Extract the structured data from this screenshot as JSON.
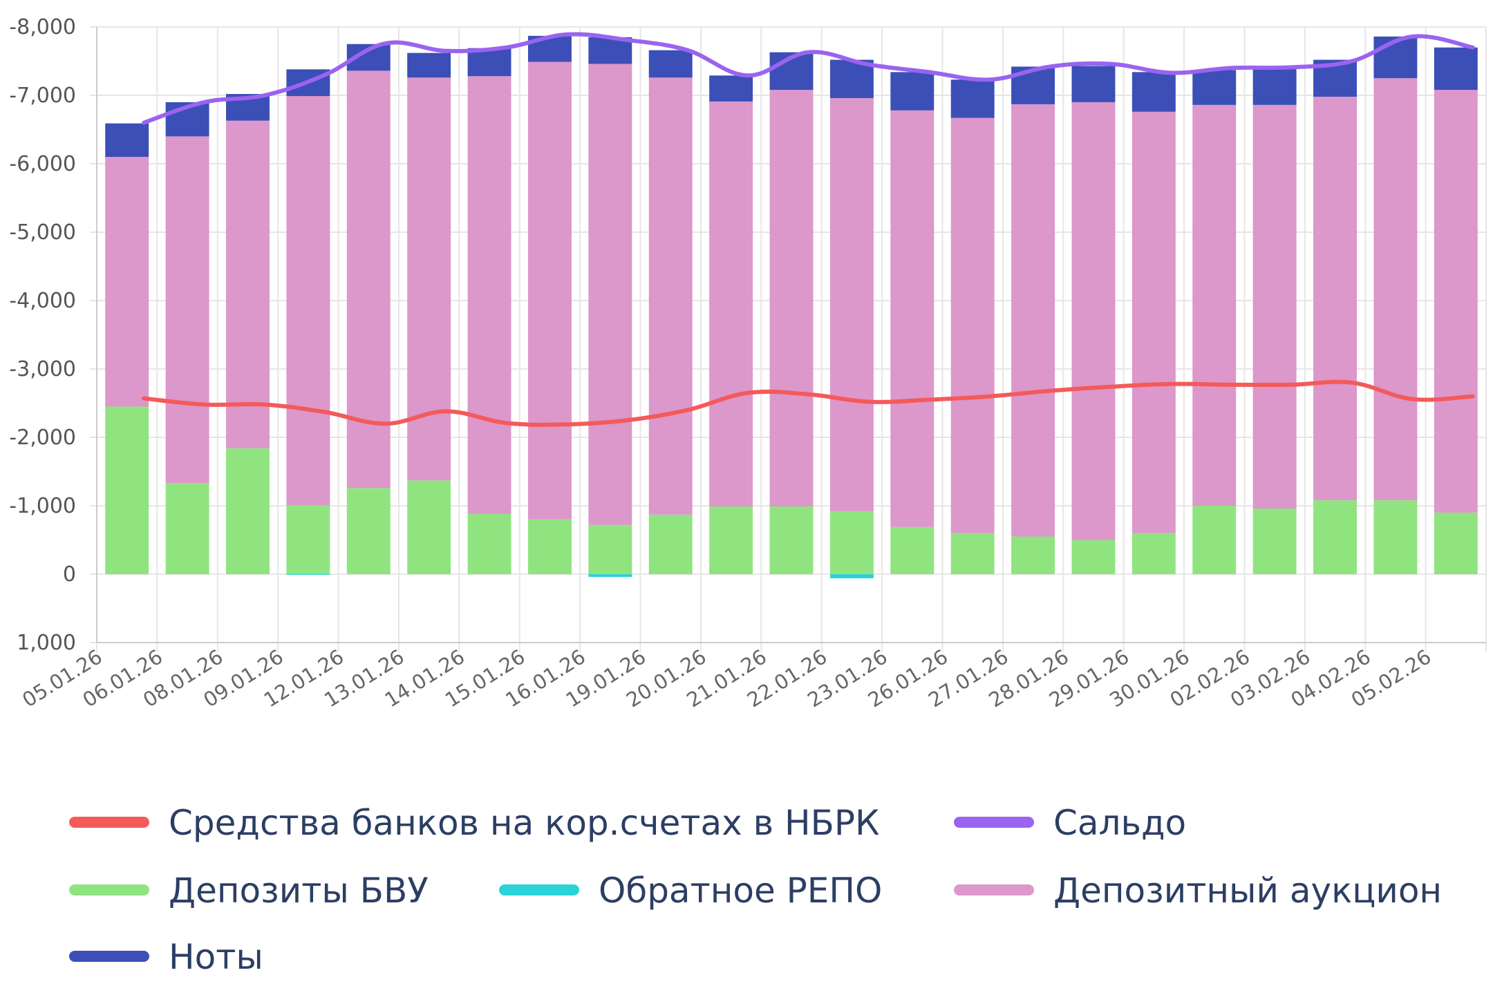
{
  "chart_data": {
    "type": "bar",
    "stacked": true,
    "axis_reversed": true,
    "ylim": [
      -8000,
      1000
    ],
    "yticks": [
      -8000,
      -7000,
      -6000,
      -5000,
      -4000,
      -3000,
      -2000,
      -1000,
      0,
      1000
    ],
    "ytick_labels": [
      "-8,000",
      "-7,000",
      "-6,000",
      "-5,000",
      "-4,000",
      "-3,000",
      "-2,000",
      "-1,000",
      "0",
      "1,000"
    ],
    "grid": true,
    "legend_position": "bottom",
    "categories": [
      "05.01.26",
      "06.01.26",
      "08.01.26",
      "09.01.26",
      "12.01.26",
      "13.01.26",
      "14.01.26",
      "15.01.26",
      "16.01.26",
      "19.01.26",
      "20.01.26",
      "21.01.26",
      "22.01.26",
      "23.01.26",
      "26.01.26",
      "27.01.26",
      "28.01.26",
      "29.01.26",
      "30.01.26",
      "02.02.26",
      "03.02.26",
      "04.02.26",
      "05.02.26"
    ],
    "series": [
      {
        "name": "Депозиты БВУ",
        "type": "bar",
        "color": "#90e480",
        "values": [
          -2450,
          -1330,
          -1840,
          -1010,
          -1260,
          -1370,
          -880,
          -800,
          -720,
          -870,
          -990,
          -990,
          -920,
          -690,
          -600,
          -550,
          -500,
          -600,
          -1000,
          -960,
          -1080,
          -1080,
          -900
        ]
      },
      {
        "name": "Обратное РЕПО",
        "type": "bar",
        "color": "#2ad3d8",
        "values": [
          0,
          0,
          0,
          10,
          0,
          0,
          0,
          0,
          40,
          0,
          0,
          0,
          60,
          0,
          0,
          0,
          0,
          0,
          0,
          0,
          0,
          0,
          0
        ]
      },
      {
        "name": "Депозитный аукцион",
        "type": "bar",
        "color": "#dc97cb",
        "values": [
          -3650,
          -5070,
          -4790,
          -5980,
          -6100,
          -5890,
          -6400,
          -6690,
          -6740,
          -6390,
          -5920,
          -6090,
          -6040,
          -6090,
          -6070,
          -6320,
          -6400,
          -6160,
          -5860,
          -5900,
          -5900,
          -6170,
          -6180
        ]
      },
      {
        "name": "Ноты",
        "type": "bar",
        "color": "#3b4fb7",
        "values": [
          -490,
          -500,
          -390,
          -390,
          -390,
          -360,
          -410,
          -380,
          -390,
          -400,
          -380,
          -550,
          -560,
          -560,
          -560,
          -550,
          -530,
          -580,
          -510,
          -540,
          -540,
          -610,
          -620
        ]
      },
      {
        "name": "Средства банков на кор.счетах в НБРК",
        "type": "line",
        "color": "#f45a5a",
        "values": [
          -2570,
          -2480,
          -2480,
          -2370,
          -2200,
          -2380,
          -2210,
          -2190,
          -2250,
          -2400,
          -2650,
          -2630,
          -2520,
          -2550,
          -2600,
          -2680,
          -2740,
          -2780,
          -2770,
          -2770,
          -2800,
          -2560,
          -2600
        ]
      },
      {
        "name": "Сальдо",
        "type": "line",
        "color": "#9a63f0",
        "values": [
          -6600,
          -6900,
          -7000,
          -7300,
          -7760,
          -7650,
          -7700,
          -7890,
          -7810,
          -7660,
          -7290,
          -7630,
          -7450,
          -7340,
          -7230,
          -7420,
          -7460,
          -7330,
          -7400,
          -7410,
          -7500,
          -7860,
          -7700
        ]
      }
    ],
    "legend": [
      {
        "name": "Средства банков на кор.счетах в НБРК",
        "color": "#f45a5a"
      },
      {
        "name": "Сальдо",
        "color": "#9a63f0"
      },
      {
        "name": "Депозиты БВУ",
        "color": "#90e480"
      },
      {
        "name": "Обратное РЕПО",
        "color": "#2ad3d8"
      },
      {
        "name": "Депозитный аукцион",
        "color": "#dc97cb"
      },
      {
        "name": "Ноты",
        "color": "#3b4fb7"
      }
    ],
    "colors": {
      "grid": "#e6e6e6",
      "axis": "#cccccc",
      "legend_text": "#2c3e63"
    }
  }
}
